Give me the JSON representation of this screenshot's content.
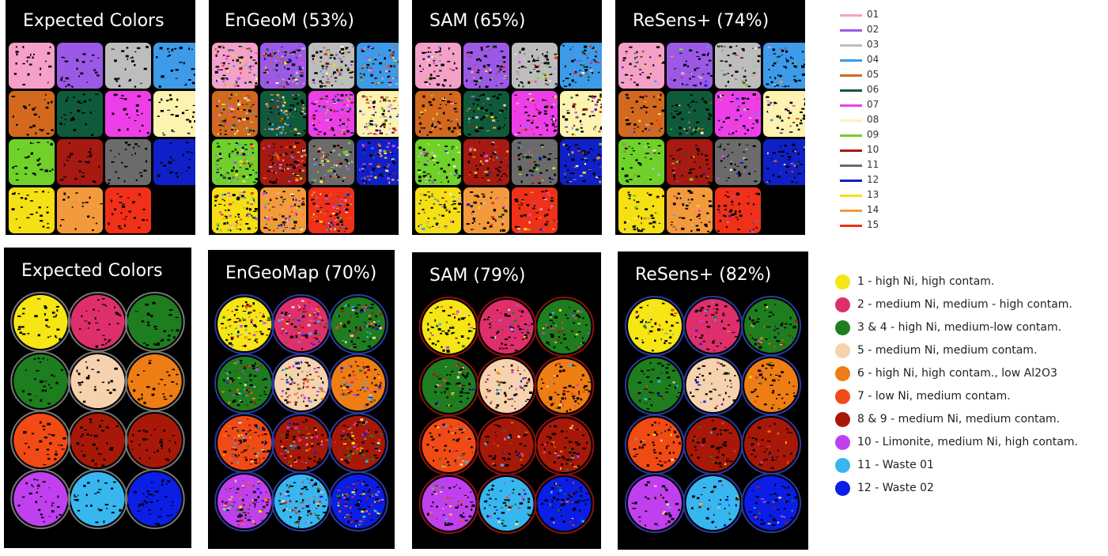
{
  "top_row": {
    "panels": [
      {
        "title": "Expected Colors",
        "mode": "expected"
      },
      {
        "title": "EnGeoM (53%)",
        "mode": "noisy_high"
      },
      {
        "title": "SAM (65%)",
        "mode": "noisy_mid"
      },
      {
        "title": "ReSens+ (74%)",
        "mode": "noisy_low"
      }
    ],
    "legend": [
      {
        "label": "01",
        "color": "#f4a0c8"
      },
      {
        "label": "02",
        "color": "#9b59e6"
      },
      {
        "label": "03",
        "color": "#bdbdbd"
      },
      {
        "label": "04",
        "color": "#3d9be9"
      },
      {
        "label": "05",
        "color": "#d2691e"
      },
      {
        "label": "06",
        "color": "#0f5a3a"
      },
      {
        "label": "07",
        "color": "#ee3ee8"
      },
      {
        "label": "08",
        "color": "#fdf3b0"
      },
      {
        "label": "09",
        "color": "#6fd12a"
      },
      {
        "label": "10",
        "color": "#a61a12"
      },
      {
        "label": "11",
        "color": "#6b6b6b"
      },
      {
        "label": "12",
        "color": "#1020c8"
      },
      {
        "label": "13",
        "color": "#f5e014"
      },
      {
        "label": "14",
        "color": "#f39a3c"
      },
      {
        "label": "15",
        "color": "#f03018"
      }
    ]
  },
  "bottom_row": {
    "panels": [
      {
        "title": "Expected Colors",
        "mode": "expected"
      },
      {
        "title": "EnGeoMap (70%)",
        "mode": "noisy_high"
      },
      {
        "title": "SAM (79%)",
        "mode": "noisy_mid"
      },
      {
        "title": "ReSens+ (82%)",
        "mode": "noisy_low"
      }
    ],
    "dish_class_colors": [
      "#f5e614",
      "#de2f6c",
      "#1e7d1e",
      "#1e7d1e",
      "#f6d2ae",
      "#ee7d14",
      "#f24a14",
      "#a81808",
      "#a81808",
      "#c040f0",
      "#38b6f0",
      "#0a1ee6"
    ],
    "legend": [
      {
        "label": "1 - high Ni, high contam.",
        "color": "#f5e614"
      },
      {
        "label": "2 - medium Ni, medium - high contam.",
        "color": "#de2f6c"
      },
      {
        "label": "3 & 4 - high Ni, medium-low contam.",
        "color": "#1e7d1e"
      },
      {
        "label": "5 - medium Ni, medium contam.",
        "color": "#f6d2ae"
      },
      {
        "label": "6 - high Ni, high contam., low Al2O3",
        "color": "#ee7d14"
      },
      {
        "label": "7 - low Ni, medium contam.",
        "color": "#f24a14"
      },
      {
        "label": "8 & 9 - medium Ni, medium contam.",
        "color": "#a81808"
      },
      {
        "label": "10 - Limonite, medium Ni, high contam.",
        "color": "#c040f0"
      },
      {
        "label": "11 - Waste 01",
        "color": "#38b6f0"
      },
      {
        "label": "12 - Waste 02",
        "color": "#0a1ee6"
      }
    ]
  }
}
